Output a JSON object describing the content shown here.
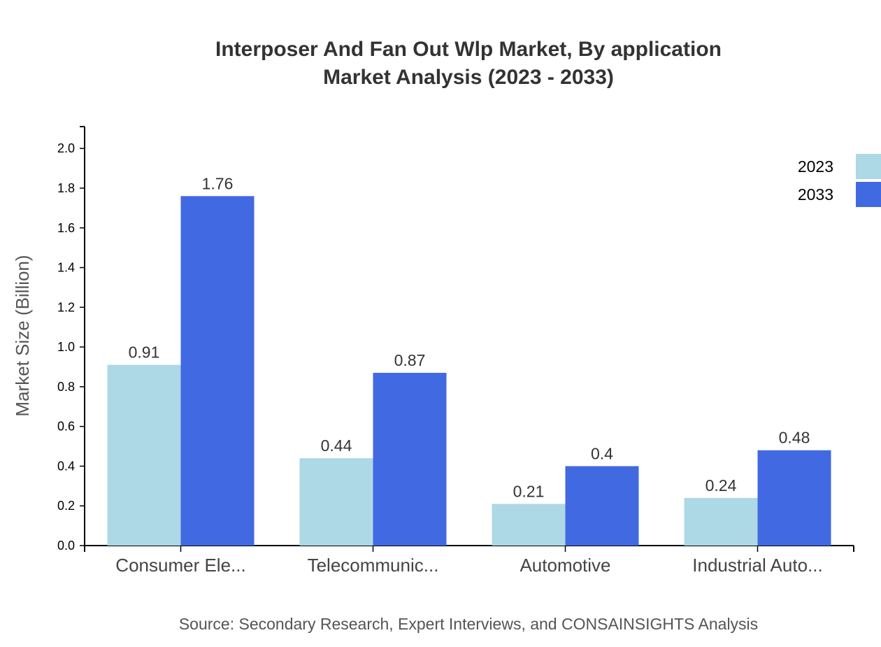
{
  "chart_data": {
    "type": "bar",
    "title": "Interposer And Fan Out Wlp Market, By application",
    "subtitle": "Market Analysis (2023 - 2033)",
    "xlabel": "",
    "ylabel": "Market Size (Billion)",
    "ylim": [
      0,
      2.11
    ],
    "yticks": [
      "0.0",
      "0.2",
      "0.4",
      "0.6",
      "0.8",
      "1.0",
      "1.2",
      "1.4",
      "1.6",
      "1.8",
      "2.0"
    ],
    "categories": [
      "Consumer Ele...",
      "Telecommunic...",
      "Automotive",
      "Industrial Auto..."
    ],
    "series": [
      {
        "name": "2023",
        "color": "#ADD8E6",
        "values": [
          0.91,
          0.44,
          0.21,
          0.24
        ]
      },
      {
        "name": "2033",
        "color": "#4169E1",
        "values": [
          1.76,
          0.87,
          0.4,
          0.48
        ]
      }
    ],
    "grid": false,
    "legend_position": "top-right",
    "source": "Source: Secondary Research, Expert Interviews, and CONSAINSIGHTS Analysis"
  }
}
